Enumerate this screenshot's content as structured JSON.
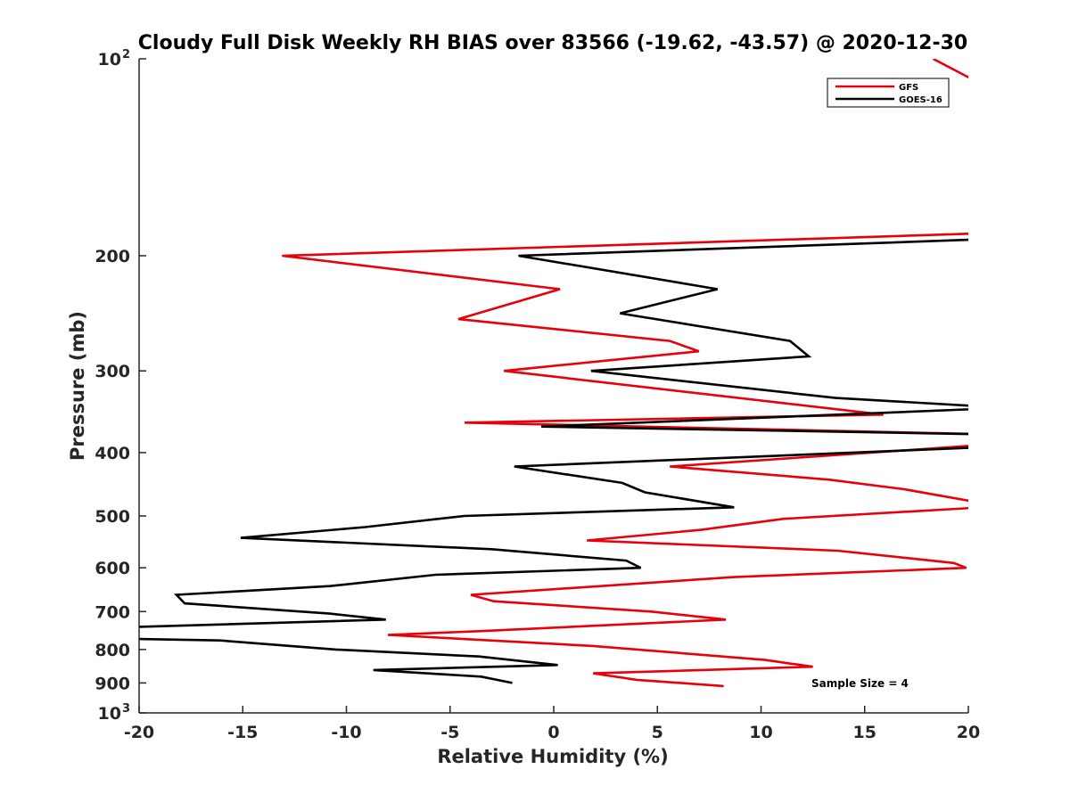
{
  "chart_data": {
    "type": "line",
    "title": "Cloudy Full Disk Weekly RH BIAS over 83566 (-19.62, -43.57) @ 2020-12-30",
    "xlabel": "Relative Humidity (%)",
    "ylabel": "Pressure (mb)",
    "xlim": [
      -20,
      20
    ],
    "ylim": [
      100,
      1000
    ],
    "yscale": "log",
    "y_reversed": true,
    "grid": false,
    "legend_position": "top-right",
    "x_ticks": [
      {
        "value": -20,
        "label": "-20"
      },
      {
        "value": -15,
        "label": "-15"
      },
      {
        "value": -10,
        "label": "-10"
      },
      {
        "value": -5,
        "label": "-5"
      },
      {
        "value": 0,
        "label": "0"
      },
      {
        "value": 5,
        "label": "5"
      },
      {
        "value": 10,
        "label": "10"
      },
      {
        "value": 15,
        "label": "15"
      },
      {
        "value": 20,
        "label": "20"
      }
    ],
    "y_ticks": [
      {
        "value": 100,
        "label": "10",
        "exponent": "2"
      },
      {
        "value": 200,
        "label": "200"
      },
      {
        "value": 300,
        "label": "300"
      },
      {
        "value": 400,
        "label": "400"
      },
      {
        "value": 500,
        "label": "500"
      },
      {
        "value": 600,
        "label": "600"
      },
      {
        "value": 700,
        "label": "700"
      },
      {
        "value": 800,
        "label": "800"
      },
      {
        "value": 900,
        "label": "900"
      },
      {
        "value": 1000,
        "label": "10",
        "exponent": "3"
      }
    ],
    "series": [
      {
        "name": "GFS",
        "color": "#e8000b",
        "points": [
          [
            18.3,
            100
          ],
          [
            20.8,
            110
          ],
          [
            20.3,
            185
          ],
          [
            -13.1,
            200
          ],
          [
            0.3,
            225
          ],
          [
            -4.6,
            250
          ],
          [
            5.6,
            270
          ],
          [
            7.0,
            280
          ],
          [
            -2.4,
            300
          ],
          [
            15.9,
            350
          ],
          [
            -4.3,
            360
          ],
          [
            21.0,
            375
          ],
          [
            20.4,
            390
          ],
          [
            5.6,
            420
          ],
          [
            13.3,
            440
          ],
          [
            16.9,
            455
          ],
          [
            20.2,
            475
          ],
          [
            20.7,
            485
          ],
          [
            11.1,
            505
          ],
          [
            7.1,
            525
          ],
          [
            1.6,
            545
          ],
          [
            13.7,
            565
          ],
          [
            19.3,
            590
          ],
          [
            19.9,
            600
          ],
          [
            8.7,
            620
          ],
          [
            -4.0,
            660
          ],
          [
            -2.9,
            675
          ],
          [
            4.7,
            700
          ],
          [
            8.3,
            720
          ],
          [
            -3.6,
            750
          ],
          [
            -8.0,
            760
          ],
          [
            1.9,
            790
          ],
          [
            10.2,
            830
          ],
          [
            12.5,
            850
          ],
          [
            1.9,
            870
          ],
          [
            4.0,
            890
          ],
          [
            8.2,
            910
          ]
        ]
      },
      {
        "name": "GOES-16",
        "color": "#000000",
        "points": [
          [
            20.2,
            189
          ],
          [
            -1.7,
            200
          ],
          [
            7.9,
            225
          ],
          [
            3.2,
            245
          ],
          [
            11.4,
            270
          ],
          [
            12.3,
            285
          ],
          [
            1.8,
            300
          ],
          [
            13.6,
            330
          ],
          [
            20.7,
            340
          ],
          [
            20.5,
            343
          ],
          [
            -0.6,
            365
          ],
          [
            20.7,
            375
          ],
          [
            20.3,
            393
          ],
          [
            -1.9,
            420
          ],
          [
            3.3,
            445
          ],
          [
            4.4,
            460
          ],
          [
            8.7,
            485
          ],
          [
            -4.3,
            500
          ],
          [
            -9.1,
            520
          ],
          [
            -15.1,
            540
          ],
          [
            -3.0,
            562
          ],
          [
            3.5,
            585
          ],
          [
            4.2,
            600
          ],
          [
            -5.7,
            615
          ],
          [
            -10.8,
            640
          ],
          [
            -18.2,
            660
          ],
          [
            -17.8,
            680
          ],
          [
            -10.8,
            705
          ],
          [
            -8.1,
            720
          ],
          [
            -20.8,
            740
          ],
          [
            -20.9,
            770
          ],
          [
            -16.1,
            775
          ],
          [
            -10.5,
            800
          ],
          [
            -3.6,
            820
          ],
          [
            0.2,
            845
          ],
          [
            -8.7,
            860
          ],
          [
            -3.5,
            880
          ],
          [
            -2.0,
            900
          ]
        ]
      }
    ],
    "annotation": "Sample Size = 4"
  }
}
